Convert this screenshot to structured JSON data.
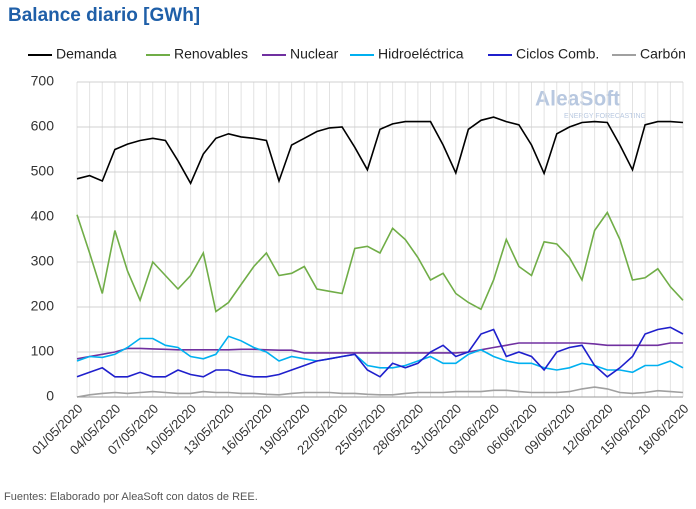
{
  "chart_data": {
    "type": "line",
    "title": "Balance diario [GWh]",
    "source": "Fuentes: Elaborado por AleaSoft con datos de REE.",
    "logo": {
      "name": "AleaSoft",
      "tagline": "ENERGY FORECASTING"
    },
    "categories": [
      "01/05/2020",
      null,
      null,
      "04/05/2020",
      null,
      null,
      "07/05/2020",
      null,
      null,
      "10/05/2020",
      null,
      null,
      "13/05/2020",
      null,
      null,
      "16/05/2020",
      null,
      null,
      "19/05/2020",
      null,
      null,
      "22/05/2020",
      null,
      null,
      "25/05/2020",
      null,
      null,
      "28/05/2020",
      null,
      null,
      "31/05/2020",
      null,
      null,
      "03/06/2020",
      null,
      null,
      "06/06/2020",
      null,
      null,
      "09/06/2020",
      null,
      null,
      "12/06/2020",
      null,
      null,
      "15/06/2020",
      null,
      null,
      "18/06/2020"
    ],
    "ylim": [
      0,
      700
    ],
    "yticks": [
      0,
      100,
      200,
      300,
      400,
      500,
      600,
      700
    ],
    "grid": true,
    "series": [
      {
        "name": "Demanda",
        "color": "#000000",
        "values": [
          485,
          492,
          480,
          550,
          562,
          570,
          575,
          570,
          525,
          475,
          540,
          575,
          585,
          578,
          575,
          570,
          480,
          560,
          575,
          590,
          598,
          600,
          555,
          505,
          595,
          607,
          612,
          612,
          612,
          560,
          498,
          595,
          615,
          622,
          612,
          605,
          560,
          497,
          585,
          600,
          610,
          612,
          610,
          560,
          505,
          605,
          612,
          612,
          610
        ]
      },
      {
        "name": "Renovables",
        "color": "#70ad47",
        "values": [
          405,
          320,
          230,
          370,
          280,
          215,
          300,
          270,
          240,
          270,
          320,
          190,
          210,
          250,
          290,
          320,
          270,
          275,
          290,
          240,
          235,
          230,
          330,
          335,
          320,
          375,
          350,
          310,
          260,
          275,
          230,
          210,
          195,
          260,
          350,
          290,
          270,
          345,
          340,
          310,
          260,
          370,
          410,
          350,
          260,
          265,
          285,
          245,
          215
        ]
      },
      {
        "name": "Nuclear",
        "color": "#7030a0",
        "values": [
          85,
          90,
          95,
          100,
          108,
          108,
          107,
          106,
          105,
          105,
          105,
          105,
          105,
          106,
          106,
          105,
          104,
          104,
          98,
          98,
          98,
          98,
          98,
          98,
          98,
          98,
          98,
          98,
          98,
          98,
          98,
          100,
          105,
          110,
          115,
          120,
          120,
          120,
          120,
          120,
          120,
          118,
          115,
          115,
          115,
          115,
          115,
          120,
          120
        ]
      },
      {
        "name": "Hidroeléctrica",
        "color": "#00b0f0",
        "values": [
          80,
          90,
          88,
          95,
          110,
          130,
          130,
          115,
          110,
          90,
          85,
          95,
          135,
          125,
          110,
          100,
          80,
          90,
          85,
          80,
          85,
          90,
          95,
          70,
          65,
          65,
          70,
          80,
          90,
          75,
          75,
          95,
          105,
          90,
          80,
          75,
          75,
          65,
          60,
          65,
          75,
          70,
          60,
          60,
          55,
          70,
          70,
          80,
          65
        ]
      },
      {
        "name": "Ciclos Comb.",
        "color": "#1f1fcc",
        "values": [
          45,
          55,
          65,
          45,
          45,
          55,
          45,
          45,
          60,
          50,
          45,
          60,
          60,
          50,
          45,
          45,
          50,
          60,
          70,
          80,
          85,
          90,
          95,
          60,
          45,
          75,
          65,
          75,
          100,
          115,
          90,
          100,
          140,
          150,
          90,
          100,
          90,
          60,
          100,
          110,
          115,
          70,
          45,
          65,
          90,
          140,
          150,
          155,
          140
        ]
      },
      {
        "name": "Carbón",
        "color": "#a0a0a0",
        "values": [
          0,
          5,
          8,
          10,
          8,
          10,
          12,
          10,
          8,
          8,
          12,
          10,
          10,
          8,
          8,
          6,
          5,
          8,
          10,
          10,
          10,
          8,
          8,
          6,
          5,
          5,
          8,
          10,
          10,
          10,
          12,
          12,
          12,
          15,
          15,
          12,
          10,
          10,
          10,
          12,
          18,
          22,
          18,
          10,
          8,
          10,
          14,
          12,
          10
        ]
      }
    ]
  }
}
